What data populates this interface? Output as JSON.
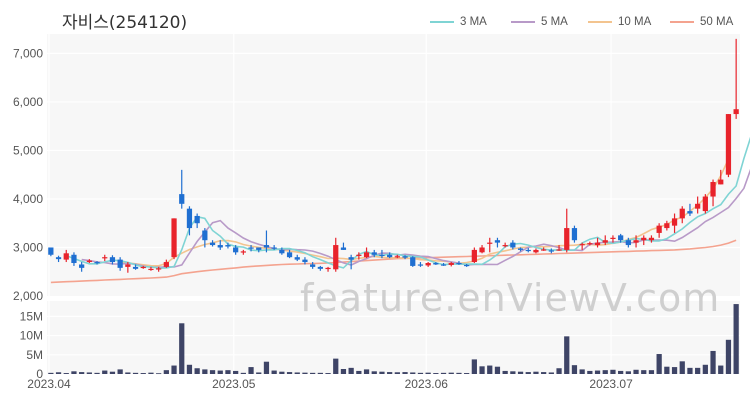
{
  "title": "자비스(254120)",
  "watermark": "feature.enViewV.com",
  "colors": {
    "ma3": "#7fd4d4",
    "ma5": "#b89ac8",
    "ma10": "#f3c48f",
    "ma50": "#f4a38f",
    "up": "#e8232b",
    "down": "#1f6fd1",
    "volume": "#3e4466",
    "plot_bg": "#f7f7f7",
    "grid": "#ffffff"
  },
  "chart_data": {
    "type": "candlestick",
    "legend": [
      {
        "name": "3 MA",
        "color": "#7fd4d4"
      },
      {
        "name": "5 MA",
        "color": "#b89ac8"
      },
      {
        "name": "10 MA",
        "color": "#f3c48f"
      },
      {
        "name": "50 MA",
        "color": "#f4a38f"
      }
    ],
    "legend_position": "top-right",
    "price_axis": {
      "ticks": [
        "2,000",
        "3,000",
        "4,000",
        "5,000",
        "6,000",
        "7,000"
      ],
      "ylim": [
        2000,
        7400
      ]
    },
    "volume_axis": {
      "ticks": [
        "0",
        "5M",
        "10M",
        "15M"
      ],
      "ylim": [
        0,
        19000000
      ]
    },
    "x_labels": [
      "2023.04",
      "2023.05",
      "2023.06",
      "2023.07"
    ],
    "x_label_index": [
      0,
      24,
      49,
      73
    ],
    "ohlc": [
      [
        3000,
        3000,
        2820,
        2850
      ],
      [
        2800,
        2830,
        2700,
        2760
      ],
      [
        2750,
        2950,
        2700,
        2880
      ],
      [
        2850,
        2900,
        2620,
        2680
      ],
      [
        2650,
        2700,
        2500,
        2580
      ],
      [
        2700,
        2760,
        2680,
        2730
      ],
      [
        2700,
        2720,
        2650,
        2680
      ],
      [
        2780,
        2850,
        2720,
        2800
      ],
      [
        2800,
        2840,
        2650,
        2700
      ],
      [
        2750,
        2800,
        2520,
        2580
      ],
      [
        2600,
        2700,
        2480,
        2650
      ],
      [
        2600,
        2650,
        2540,
        2560
      ],
      [
        2580,
        2620,
        2560,
        2600
      ],
      [
        2550,
        2600,
        2520,
        2560
      ],
      [
        2550,
        2600,
        2500,
        2570
      ],
      [
        2600,
        2750,
        2580,
        2700
      ],
      [
        2800,
        3600,
        2760,
        3600
      ],
      [
        4100,
        4600,
        3800,
        3900
      ],
      [
        3800,
        3850,
        3250,
        3400
      ],
      [
        3650,
        3700,
        3400,
        3500
      ],
      [
        3350,
        3400,
        3000,
        3150
      ],
      [
        3100,
        3150,
        3020,
        3050
      ],
      [
        3050,
        3150,
        2950,
        3000
      ],
      [
        3050,
        3100,
        2980,
        3020
      ],
      [
        3000,
        3050,
        2850,
        2900
      ],
      [
        2900,
        2950,
        2850,
        2920
      ],
      [
        3000,
        3050,
        2920,
        2980
      ],
      [
        3000,
        3000,
        2900,
        2950
      ],
      [
        3050,
        3350,
        2900,
        3000
      ],
      [
        3000,
        3050,
        2950,
        2980
      ],
      [
        2950,
        3000,
        2850,
        2880
      ],
      [
        2900,
        2950,
        2780,
        2800
      ],
      [
        2800,
        2850,
        2720,
        2750
      ],
      [
        2750,
        2800,
        2650,
        2700
      ],
      [
        2650,
        2700,
        2560,
        2600
      ],
      [
        2600,
        2620,
        2520,
        2560
      ],
      [
        2560,
        2600,
        2500,
        2580
      ],
      [
        2550,
        3200,
        2500,
        3050
      ],
      [
        3000,
        3100,
        2950,
        2950
      ],
      [
        2800,
        2850,
        2550,
        2750
      ],
      [
        2850,
        2900,
        2750,
        2850
      ],
      [
        2800,
        3000,
        2780,
        2900
      ],
      [
        2900,
        2950,
        2800,
        2850
      ],
      [
        2850,
        2950,
        2780,
        2830
      ],
      [
        2850,
        2900,
        2780,
        2800
      ],
      [
        2800,
        2850,
        2780,
        2820
      ],
      [
        2820,
        2840,
        2760,
        2790
      ],
      [
        2800,
        2820,
        2600,
        2620
      ],
      [
        2650,
        2700,
        2600,
        2640
      ],
      [
        2630,
        2700,
        2600,
        2680
      ],
      [
        2680,
        2700,
        2640,
        2650
      ],
      [
        2650,
        2680,
        2620,
        2640
      ],
      [
        2640,
        2700,
        2610,
        2680
      ],
      [
        2680,
        2720,
        2640,
        2660
      ],
      [
        2640,
        2660,
        2600,
        2620
      ],
      [
        2700,
        3000,
        2680,
        2950
      ],
      [
        2900,
        3050,
        2880,
        3000
      ],
      [
        3100,
        3200,
        2900,
        3100
      ],
      [
        3150,
        3200,
        3000,
        3100
      ],
      [
        3050,
        3100,
        3000,
        3050
      ],
      [
        3100,
        3150,
        2960,
        3000
      ],
      [
        2980,
        3000,
        2920,
        2950
      ],
      [
        2950,
        2990,
        2900,
        2940
      ],
      [
        2900,
        2980,
        2880,
        2950
      ],
      [
        2950,
        3000,
        2930,
        2960
      ],
      [
        2940,
        2980,
        2880,
        2920
      ],
      [
        2950,
        3050,
        2930,
        2960
      ],
      [
        2950,
        3800,
        2900,
        3400
      ],
      [
        3400,
        3450,
        3100,
        3150
      ],
      [
        3050,
        3100,
        2950,
        3070
      ],
      [
        3070,
        3120,
        3040,
        3090
      ],
      [
        3050,
        3200,
        3000,
        3100
      ],
      [
        3100,
        3250,
        3050,
        3150
      ],
      [
        3200,
        3250,
        3100,
        3200
      ],
      [
        3250,
        3280,
        3100,
        3150
      ],
      [
        3150,
        3200,
        3000,
        3050
      ],
      [
        3100,
        3250,
        3000,
        3150
      ],
      [
        3150,
        3250,
        3050,
        3200
      ],
      [
        3150,
        3250,
        3100,
        3200
      ],
      [
        3300,
        3500,
        3200,
        3450
      ],
      [
        3400,
        3550,
        3350,
        3500
      ],
      [
        3450,
        3700,
        3300,
        3600
      ],
      [
        3600,
        3850,
        3500,
        3800
      ],
      [
        3750,
        3900,
        3650,
        3700
      ],
      [
        3800,
        4050,
        3700,
        3900
      ],
      [
        3750,
        4100,
        3700,
        4050
      ],
      [
        4050,
        4400,
        3850,
        4350
      ],
      [
        4300,
        4600,
        4300,
        4400
      ],
      [
        4500,
        5750,
        4450,
        5750
      ],
      [
        5750,
        7300,
        5650,
        5850
      ]
    ],
    "volume": [
      300000,
      450000,
      250000,
      700000,
      500000,
      400000,
      300000,
      900000,
      600000,
      1200000,
      400000,
      300000,
      250000,
      350000,
      200000,
      1000000,
      2200000,
      13200000,
      2400000,
      1500000,
      1200000,
      1000000,
      900000,
      1000000,
      800000,
      300000,
      1800000,
      400000,
      3200000,
      900000,
      600000,
      500000,
      400000,
      350000,
      300000,
      300000,
      250000,
      4000000,
      1300000,
      1600000,
      800000,
      1200000,
      700000,
      600000,
      500000,
      450000,
      500000,
      400000,
      300000,
      350000,
      250000,
      300000,
      350000,
      300000,
      250000,
      3800000,
      2000000,
      2200000,
      1900000,
      800000,
      700000,
      600000,
      500000,
      600000,
      500000,
      400000,
      1500000,
      9800000,
      2300000,
      1200000,
      800000,
      900000,
      1000000,
      1100000,
      800000,
      700000,
      1100000,
      1000000,
      1000000,
      5200000,
      1900000,
      1800000,
      3300000,
      1600000,
      1600000,
      2400000,
      6000000,
      2200000,
      8900000,
      18200000
    ],
    "ma": {
      "3 MA": {
        "start": 2,
        "values": [
          2830,
          2773,
          2713,
          2663,
          2663,
          2703,
          2737,
          2727,
          2693,
          2643,
          2597,
          2603,
          2573,
          2577,
          2610,
          2957,
          3400,
          3633,
          3600,
          3350,
          3233,
          3067,
          3023,
          3007,
          2947,
          2933,
          2950,
          2950,
          2977,
          2977,
          2937,
          2893,
          2810,
          2750,
          2683,
          2620,
          2580,
          2730,
          2860,
          2917,
          2850,
          2833,
          2867,
          2860,
          2828,
          2817,
          2803,
          2743,
          2683,
          2647,
          2657,
          2657,
          2657,
          2660,
          2653,
          2743,
          2857,
          3017,
          3067,
          3083,
          3050,
          3000,
          2963,
          2947,
          2950,
          2943,
          2947,
          3093,
          3170,
          3207,
          3103,
          3087,
          3113,
          3150,
          3183,
          3167,
          3133,
          3133,
          3183,
          3283,
          3383,
          3517,
          3633,
          3700,
          3800,
          3883,
          4100,
          4267,
          4833,
          5333
        ]
      },
      "5 MA": {
        "start": 4,
        "values": [
          2750,
          2730,
          2702,
          2688,
          2662,
          2658,
          2672,
          2656,
          2618,
          2594,
          2592,
          2602,
          2597,
          2640,
          2886,
          3126,
          3318,
          3510,
          3554,
          3400,
          3300,
          3195,
          3120,
          3065,
          3020,
          2977,
          2955,
          2964,
          2955,
          2948,
          2925,
          2876,
          2821,
          2748,
          2682,
          2638,
          2714,
          2770,
          2840,
          2884,
          2880,
          2840,
          2860,
          2844,
          2821,
          2813,
          2770,
          2730,
          2702,
          2676,
          2640,
          2650,
          2651,
          2651,
          2650,
          2736,
          2816,
          2910,
          3008,
          3030,
          3067,
          3037,
          2998,
          2946,
          2949,
          2936,
          3066,
          3090,
          3108,
          3114,
          3122,
          3093,
          3107,
          3157,
          3153,
          3153,
          3150,
          3130,
          3205,
          3307,
          3407,
          3535,
          3620,
          3720,
          3824,
          4010,
          4220,
          4662,
          5108
        ]
      },
      "10 MA": {
        "start": 9,
        "values": [
          2702,
          2682,
          2664,
          2644,
          2624,
          2622,
          2672,
          2799,
          2883,
          2958,
          3012,
          3062,
          3095,
          3139,
          3141,
          3115,
          3062,
          3028,
          3001,
          2983,
          2967,
          2951,
          2926,
          2904,
          2876,
          2844,
          2810,
          2772,
          2779,
          2771,
          2754,
          2778,
          2796,
          2817,
          2797,
          2788,
          2787,
          2786,
          2773,
          2749,
          2739,
          2726,
          2718,
          2698,
          2675,
          2690,
          2722,
          2778,
          2865,
          2901,
          2931,
          2969,
          3000,
          3006,
          3020,
          3014,
          3021,
          3037,
          3040,
          3048,
          3066,
          3066,
          3046,
          3060,
          3089,
          3110,
          3167,
          3205,
          3286,
          3370,
          3417,
          3475,
          3570,
          3627,
          3746,
          3870,
          4026,
          4211,
          4482,
          4824
        ]
      },
      "50 MA": {
        "start": 0,
        "values": [
          2280,
          2287,
          2294,
          2301,
          2308,
          2315,
          2322,
          2329,
          2336,
          2343,
          2350,
          2357,
          2364,
          2371,
          2380,
          2390,
          2420,
          2460,
          2480,
          2500,
          2520,
          2535,
          2550,
          2565,
          2580,
          2595,
          2610,
          2620,
          2630,
          2640,
          2650,
          2655,
          2660,
          2665,
          2670,
          2675,
          2680,
          2690,
          2700,
          2710,
          2720,
          2730,
          2740,
          2750,
          2760,
          2770,
          2775,
          2780,
          2785,
          2790,
          2795,
          2800,
          2805,
          2810,
          2815,
          2820,
          2825,
          2830,
          2835,
          2840,
          2845,
          2850,
          2855,
          2860,
          2865,
          2870,
          2875,
          2880,
          2885,
          2890,
          2895,
          2900,
          2905,
          2910,
          2915,
          2920,
          2925,
          2930,
          2935,
          2940,
          2945,
          2950,
          2960,
          2970,
          2985,
          3000,
          3020,
          3050,
          3090,
          3150
        ]
      }
    }
  }
}
